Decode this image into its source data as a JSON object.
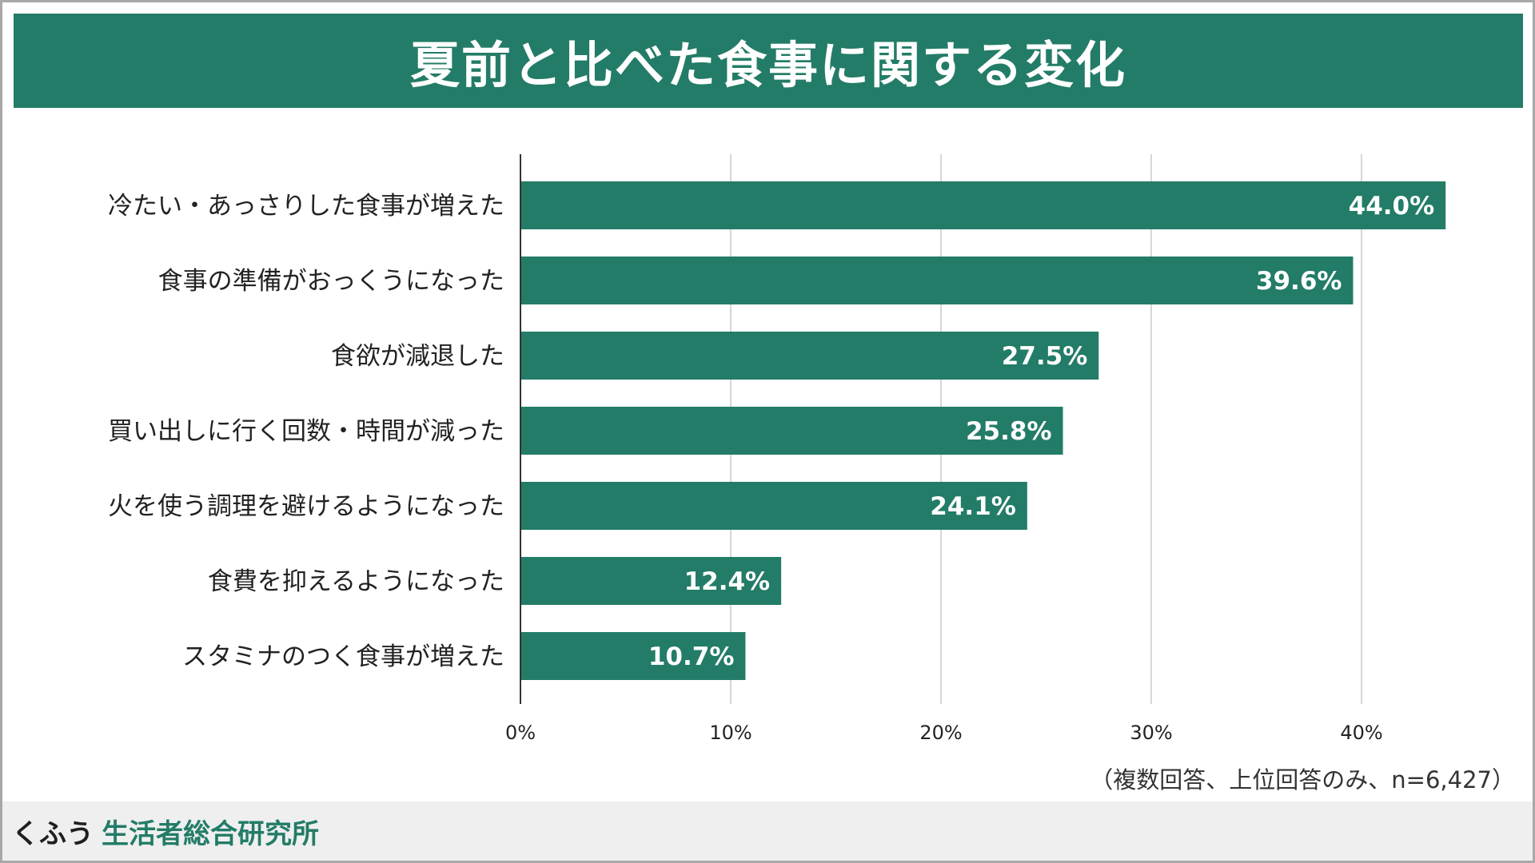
{
  "chart_data": {
    "type": "bar",
    "orientation": "horizontal",
    "title": "夏前と比べた食事に関する変化",
    "categories": [
      "冷たい・あっさりした食事が増えた",
      "食事の準備がおっくうになった",
      "食欲が減退した",
      "買い出しに行く回数・時間が減った",
      "火を使う調理を避けるようになった",
      "食費を抑えるようになった",
      "スタミナのつく食事が増えた"
    ],
    "values": [
      44.0,
      39.6,
      27.5,
      25.8,
      24.1,
      12.4,
      10.7
    ],
    "value_labels": [
      "44.0%",
      "39.6%",
      "27.5%",
      "25.8%",
      "24.1%",
      "12.4%",
      "10.7%"
    ],
    "xlim": [
      0,
      50
    ],
    "xticks": [
      0,
      10,
      20,
      30,
      40
    ],
    "xtick_labels": [
      "0%",
      "10%",
      "20%",
      "30%",
      "40%"
    ],
    "grid": true,
    "bar_color": "#237c67",
    "note": "（複数回答、上位回答のみ、n=6,427）"
  },
  "header": {
    "bg_color": "#237c67"
  },
  "footer": {
    "brand": "くふう",
    "org": "生活者総合研究所",
    "org_color": "#237c67"
  }
}
